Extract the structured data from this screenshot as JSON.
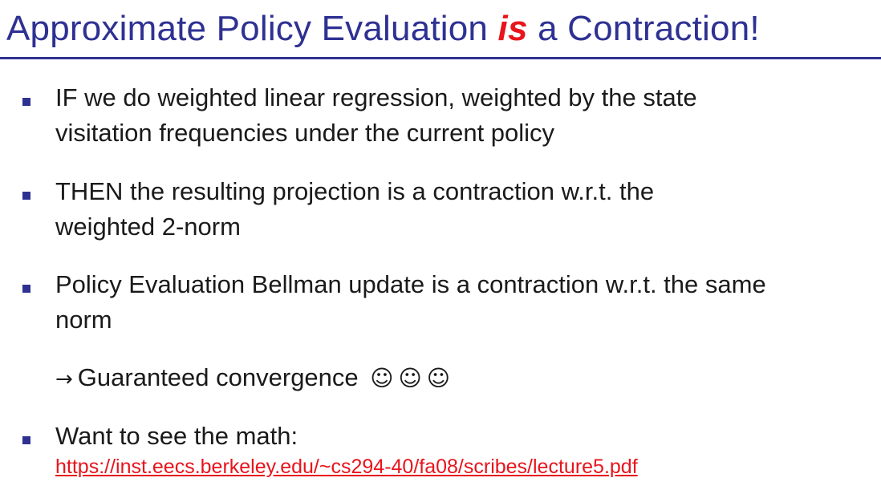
{
  "slide": {
    "title_part1": "Approximate Policy Evaluation ",
    "title_emphasis": "is",
    "title_part2": " a Contraction!",
    "bullets": [
      {
        "line1": "IF we do weighted linear regression, weighted by the state",
        "line2": "visitation frequencies under the current policy"
      },
      {
        "line1": "THEN  the resulting projection is a contraction w.r.t. the",
        "line2": "weighted 2-norm"
      },
      {
        "line1": "Policy Evaluation Bellman update is a contraction w.r.t. the same",
        "line2": "norm"
      }
    ],
    "conclusion": {
      "arrow": "→",
      "text": "Guaranteed convergence",
      "smileys": [
        "☺",
        "☺",
        "☺"
      ]
    },
    "last_bullet": {
      "text": "Want to see the math:",
      "link": "https://inst.eecs.berkeley.edu/~cs294-40/fa08/scribes/lecture5.pdf"
    },
    "colors": {
      "title": "#2e3192",
      "emphasis": "#e8141c",
      "bullet": "#2e3192",
      "link": "#e8141c"
    }
  }
}
